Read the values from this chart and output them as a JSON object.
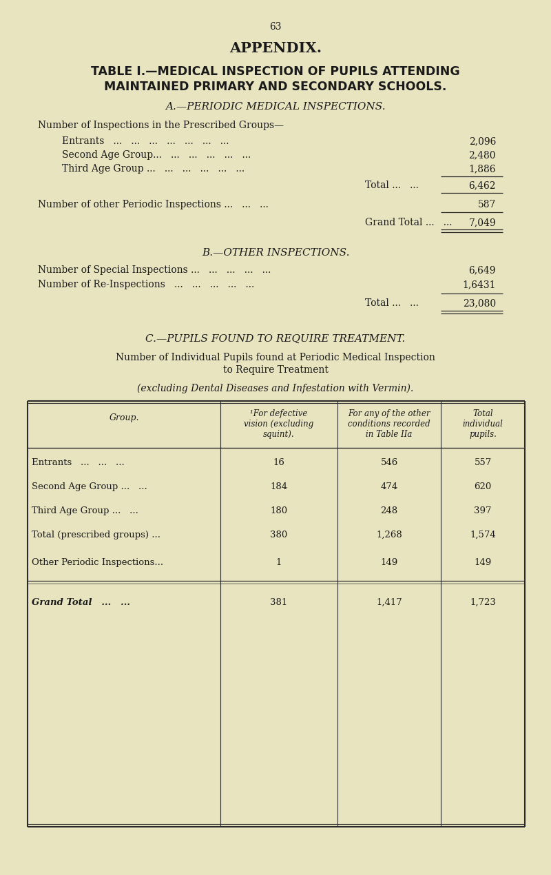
{
  "bg_color": "#e8e4c0",
  "text_color": "#1a1a1a",
  "line_color": "#2a2a2a",
  "page_number": "63",
  "appendix_title": "APPENDIX.",
  "table_title_line1": "TABLE I.—MEDICAL INSPECTION OF PUPILS ATTENDING",
  "table_title_line2": "MAINTAINED PRIMARY AND SECONDARY SCHOOLS.",
  "section_a_title": "A.—PERIODIC MEDICAL INSPECTIONS.",
  "section_a_subtitle": "Number of Inspections in the Prescribed Groups—",
  "section_a_rows": [
    {
      "label": "Entrants   ...   ...   ...   ...   ...   ...   ...",
      "value": "2,096"
    },
    {
      "label": "Second Age Group...   ...   ...   ...   ...   ...",
      "value": "2,480"
    },
    {
      "label": "Third Age Group ...   ...   ...   ...   ...   ...",
      "value": "1,886"
    }
  ],
  "total_label": "Total ...",
  "total_dots": "...",
  "total_value": "6,462",
  "other_periodic_label": "Number of other Periodic Inspections ...   ...   ...",
  "other_periodic_value": "587",
  "grand_total_a_label": "Grand Total ...",
  "grand_total_a_value": "7,049",
  "section_b_title": "B.—OTHER INSPECTIONS.",
  "section_b_rows": [
    {
      "label": "Number of Special Inspections ...   ...   ...   ...   ...",
      "value": "6,649"
    },
    {
      "label": "Number of Re-Inspections   ...   ...   ...   ...   ...",
      "value": "1,6431"
    }
  ],
  "total_b_label": "Total ...",
  "total_b_dots": "...",
  "total_b_value": "23,080",
  "section_c_title": "C.—PUPILS FOUND TO REQUIRE TREATMENT.",
  "section_c_subtitle1": "Number of Individual Pupils found at Periodic Medical Inspection",
  "section_c_subtitle2": "to Require Treatment",
  "section_c_subtitle3": "(excluding Dental Diseases and Infestation with Vermin).",
  "table_col1_header": "Group.",
  "table_col2_header": "¹For defective\nvision (excluding\nsquint).",
  "table_col3_header": "For any of the other\nconditions recorded\nin Table IIa",
  "table_col4_header": "Total\nindividual\npupils.",
  "table_rows": [
    {
      "group": "Entrants   ...   ...   ...",
      "col2": "16",
      "col3": "546",
      "col4": "557"
    },
    {
      "group": "Second Age Group ...   ...",
      "col2": "184",
      "col3": "474",
      "col4": "620"
    },
    {
      "group": "Third Age Group ...   ...",
      "col2": "180",
      "col3": "248",
      "col4": "397"
    },
    {
      "group": "Total (prescribed groups) ...",
      "col2": "380",
      "col3": "1,268",
      "col4": "1,574"
    },
    {
      "group": "Other Periodic Inspections...",
      "col2": "1",
      "col3": "149",
      "col4": "149"
    }
  ],
  "table_grand_total": {
    "group": "Grand Total   ...   ...",
    "col2": "381",
    "col3": "1,417",
    "col4": "1,723"
  }
}
